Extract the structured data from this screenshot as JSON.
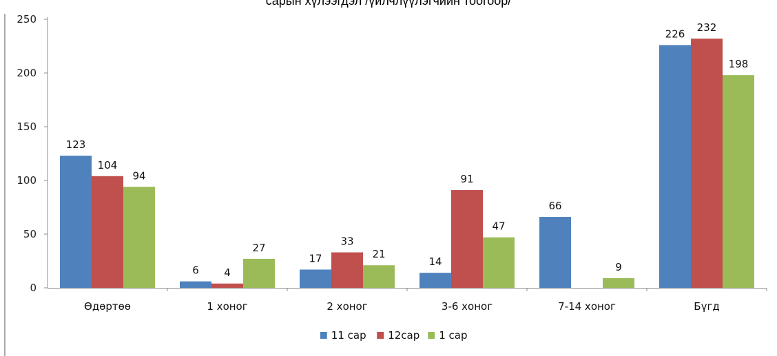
{
  "title": "сарын хүлээгдэл /үйлчлүүлэгчийн тоогоор/",
  "chart_data": {
    "type": "bar",
    "title": "сарын хүлээгдэл /үйлчлүүлэгчийн тоогоор/",
    "xlabel": "",
    "ylabel": "",
    "categories": [
      "Өдөртөө",
      "1 хоног",
      "2 хоног",
      "3-6 хоног",
      "7-14 хоног",
      "Бүгд"
    ],
    "series": [
      {
        "name": "11 сар",
        "color": "#4f81bd",
        "values": [
          123,
          6,
          17,
          14,
          66,
          226
        ]
      },
      {
        "name": "12сар",
        "color": "#c0504d",
        "values": [
          104,
          4,
          33,
          91,
          null,
          232
        ]
      },
      {
        "name": "1 сар",
        "color": "#9bbb59",
        "values": [
          94,
          27,
          21,
          47,
          9,
          198
        ]
      }
    ],
    "ylim": [
      0,
      250
    ],
    "yticks": [
      0,
      50,
      100,
      150,
      200,
      250
    ],
    "grid": false,
    "legend_position": "bottom"
  }
}
